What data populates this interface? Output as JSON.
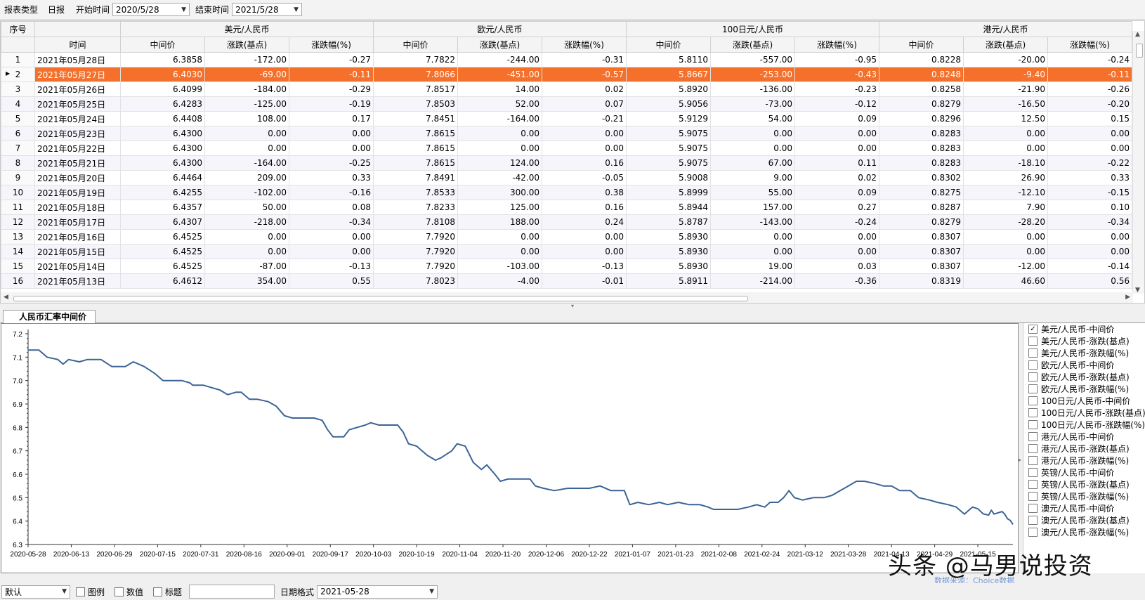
{
  "toolbar": {
    "report_type_label": "报表类型",
    "report_type_value": "日报",
    "start_label": "开始时间",
    "start_value": "2020/5/28",
    "end_label": "结束时间",
    "end_value": "2021/5/28"
  },
  "table": {
    "idx_header": "序号",
    "date_header": "时间",
    "groups": [
      "美元/人民币",
      "欧元/人民币",
      "100日元/人民币",
      "港元/人民币"
    ],
    "sub_headers": [
      "中间价",
      "涨跌(基点)",
      "涨跌幅(%)"
    ],
    "selected_row": 2,
    "rows": [
      [
        "1",
        "2021年05月28日",
        "6.3858",
        "-172.00",
        "-0.27",
        "7.7822",
        "-244.00",
        "-0.31",
        "5.8110",
        "-557.00",
        "-0.95",
        "0.8228",
        "-20.00",
        "-0.24"
      ],
      [
        "2",
        "2021年05月27日",
        "6.4030",
        "-69.00",
        "-0.11",
        "7.8066",
        "-451.00",
        "-0.57",
        "5.8667",
        "-253.00",
        "-0.43",
        "0.8248",
        "-9.40",
        "-0.11"
      ],
      [
        "3",
        "2021年05月26日",
        "6.4099",
        "-184.00",
        "-0.29",
        "7.8517",
        "14.00",
        "0.02",
        "5.8920",
        "-136.00",
        "-0.23",
        "0.8258",
        "-21.90",
        "-0.26"
      ],
      [
        "4",
        "2021年05月25日",
        "6.4283",
        "-125.00",
        "-0.19",
        "7.8503",
        "52.00",
        "0.07",
        "5.9056",
        "-73.00",
        "-0.12",
        "0.8279",
        "-16.50",
        "-0.20"
      ],
      [
        "5",
        "2021年05月24日",
        "6.4408",
        "108.00",
        "0.17",
        "7.8451",
        "-164.00",
        "-0.21",
        "5.9129",
        "54.00",
        "0.09",
        "0.8296",
        "12.50",
        "0.15"
      ],
      [
        "6",
        "2021年05月23日",
        "6.4300",
        "0.00",
        "0.00",
        "7.8615",
        "0.00",
        "0.00",
        "5.9075",
        "0.00",
        "0.00",
        "0.8283",
        "0.00",
        "0.00"
      ],
      [
        "7",
        "2021年05月22日",
        "6.4300",
        "0.00",
        "0.00",
        "7.8615",
        "0.00",
        "0.00",
        "5.9075",
        "0.00",
        "0.00",
        "0.8283",
        "0.00",
        "0.00"
      ],
      [
        "8",
        "2021年05月21日",
        "6.4300",
        "-164.00",
        "-0.25",
        "7.8615",
        "124.00",
        "0.16",
        "5.9075",
        "67.00",
        "0.11",
        "0.8283",
        "-18.10",
        "-0.22"
      ],
      [
        "9",
        "2021年05月20日",
        "6.4464",
        "209.00",
        "0.33",
        "7.8491",
        "-42.00",
        "-0.05",
        "5.9008",
        "9.00",
        "0.02",
        "0.8302",
        "26.90",
        "0.33"
      ],
      [
        "10",
        "2021年05月19日",
        "6.4255",
        "-102.00",
        "-0.16",
        "7.8533",
        "300.00",
        "0.38",
        "5.8999",
        "55.00",
        "0.09",
        "0.8275",
        "-12.10",
        "-0.15"
      ],
      [
        "11",
        "2021年05月18日",
        "6.4357",
        "50.00",
        "0.08",
        "7.8233",
        "125.00",
        "0.16",
        "5.8944",
        "157.00",
        "0.27",
        "0.8287",
        "7.90",
        "0.10"
      ],
      [
        "12",
        "2021年05月17日",
        "6.4307",
        "-218.00",
        "-0.34",
        "7.8108",
        "188.00",
        "0.24",
        "5.8787",
        "-143.00",
        "-0.24",
        "0.8279",
        "-28.20",
        "-0.34"
      ],
      [
        "13",
        "2021年05月16日",
        "6.4525",
        "0.00",
        "0.00",
        "7.7920",
        "0.00",
        "0.00",
        "5.8930",
        "0.00",
        "0.00",
        "0.8307",
        "0.00",
        "0.00"
      ],
      [
        "14",
        "2021年05月15日",
        "6.4525",
        "0.00",
        "0.00",
        "7.7920",
        "0.00",
        "0.00",
        "5.8930",
        "0.00",
        "0.00",
        "0.8307",
        "0.00",
        "0.00"
      ],
      [
        "15",
        "2021年05月14日",
        "6.4525",
        "-87.00",
        "-0.13",
        "7.7920",
        "-103.00",
        "-0.13",
        "5.8930",
        "19.00",
        "0.03",
        "0.8307",
        "-12.00",
        "-0.14"
      ],
      [
        "16",
        "2021年05月13日",
        "6.4612",
        "354.00",
        "0.55",
        "7.8023",
        "-4.00",
        "-0.01",
        "5.8911",
        "-214.00",
        "-0.36",
        "0.8319",
        "46.60",
        "0.56"
      ]
    ]
  },
  "chart_tab": "人民币汇率中间价",
  "legend": [
    {
      "label": "美元/人民币-中间价",
      "checked": true
    },
    {
      "label": "美元/人民币-涨跌(基点)",
      "checked": false
    },
    {
      "label": "美元/人民币-涨跌幅(%)",
      "checked": false
    },
    {
      "label": "欧元/人民币-中间价",
      "checked": false
    },
    {
      "label": "欧元/人民币-涨跌(基点)",
      "checked": false
    },
    {
      "label": "欧元/人民币-涨跌幅(%)",
      "checked": false
    },
    {
      "label": "100日元/人民币-中间价",
      "checked": false
    },
    {
      "label": "100日元/人民币-涨跌(基点)",
      "checked": false
    },
    {
      "label": "100日元/人民币-涨跌幅(%)",
      "checked": false
    },
    {
      "label": "港元/人民币-中间价",
      "checked": false
    },
    {
      "label": "港元/人民币-涨跌(基点)",
      "checked": false
    },
    {
      "label": "港元/人民币-涨跌幅(%)",
      "checked": false
    },
    {
      "label": "英镑/人民币-中间价",
      "checked": false
    },
    {
      "label": "英镑/人民币-涨跌(基点)",
      "checked": false
    },
    {
      "label": "英镑/人民币-涨跌幅(%)",
      "checked": false
    },
    {
      "label": "澳元/人民币-中间价",
      "checked": false
    },
    {
      "label": "澳元/人民币-涨跌(基点)",
      "checked": false
    },
    {
      "label": "澳元/人民币-涨跌幅(%)",
      "checked": false
    }
  ],
  "chart_data": {
    "type": "line",
    "title": "",
    "xlabel": "",
    "ylabel": "",
    "ylim": [
      6.3,
      7.2
    ],
    "yticks": [
      "7.2",
      "7.1",
      "7.0",
      "6.9",
      "6.8",
      "6.7",
      "6.6",
      "6.5",
      "6.4",
      "6.3"
    ],
    "xlim": [
      "2020-05-28",
      "2021-05-28"
    ],
    "xticks": [
      "2020-05-28",
      "2020-06-13",
      "2020-06-29",
      "2020-07-15",
      "2020-07-31",
      "2020-08-16",
      "2020-09-01",
      "2020-09-17",
      "2020-10-03",
      "2020-10-19",
      "2020-11-04",
      "2020-11-20",
      "2020-12-06",
      "2020-12-22",
      "2021-01-07",
      "2021-01-23",
      "2021-02-08",
      "2021-02-24",
      "2021-03-12",
      "2021-03-28",
      "2021-04-13",
      "2021-04-29",
      "2021-05-15"
    ],
    "grid": false,
    "series": [
      {
        "name": "",
        "color": "#3b6496",
        "points": [
          [
            "2020-05-28",
            7.13
          ],
          [
            "2020-06-01",
            7.13
          ],
          [
            "2020-06-04",
            7.1
          ],
          [
            "2020-06-08",
            7.09
          ],
          [
            "2020-06-10",
            7.07
          ],
          [
            "2020-06-12",
            7.09
          ],
          [
            "2020-06-16",
            7.08
          ],
          [
            "2020-06-19",
            7.09
          ],
          [
            "2020-06-24",
            7.09
          ],
          [
            "2020-06-28",
            7.06
          ],
          [
            "2020-07-03",
            7.06
          ],
          [
            "2020-07-06",
            7.08
          ],
          [
            "2020-07-08",
            7.07
          ],
          [
            "2020-07-10",
            7.06
          ],
          [
            "2020-07-14",
            7.03
          ],
          [
            "2020-07-17",
            7.0
          ],
          [
            "2020-07-21",
            7.0
          ],
          [
            "2020-07-24",
            7.0
          ],
          [
            "2020-07-27",
            6.99
          ],
          [
            "2020-07-28",
            6.98
          ],
          [
            "2020-08-01",
            6.98
          ],
          [
            "2020-08-04",
            6.97
          ],
          [
            "2020-08-07",
            6.96
          ],
          [
            "2020-08-10",
            6.94
          ],
          [
            "2020-08-13",
            6.95
          ],
          [
            "2020-08-15",
            6.95
          ],
          [
            "2020-08-18",
            6.92
          ],
          [
            "2020-08-21",
            6.92
          ],
          [
            "2020-08-25",
            6.91
          ],
          [
            "2020-08-28",
            6.89
          ],
          [
            "2020-08-31",
            6.85
          ],
          [
            "2020-09-03",
            6.84
          ],
          [
            "2020-09-08",
            6.84
          ],
          [
            "2020-09-11",
            6.84
          ],
          [
            "2020-09-14",
            6.83
          ],
          [
            "2020-09-16",
            6.79
          ],
          [
            "2020-09-18",
            6.76
          ],
          [
            "2020-09-22",
            6.76
          ],
          [
            "2020-09-24",
            6.79
          ],
          [
            "2020-09-27",
            6.8
          ],
          [
            "2020-09-30",
            6.81
          ],
          [
            "2020-10-02",
            6.82
          ],
          [
            "2020-10-05",
            6.81
          ],
          [
            "2020-10-09",
            6.81
          ],
          [
            "2020-10-12",
            6.81
          ],
          [
            "2020-10-14",
            6.78
          ],
          [
            "2020-10-16",
            6.73
          ],
          [
            "2020-10-19",
            6.72
          ],
          [
            "2020-10-21",
            6.7
          ],
          [
            "2020-10-23",
            6.68
          ],
          [
            "2020-10-26",
            6.66
          ],
          [
            "2020-10-28",
            6.67
          ],
          [
            "2020-11-01",
            6.7
          ],
          [
            "2020-11-03",
            6.73
          ],
          [
            "2020-11-06",
            6.72
          ],
          [
            "2020-11-09",
            6.65
          ],
          [
            "2020-11-12",
            6.62
          ],
          [
            "2020-11-14",
            6.64
          ],
          [
            "2020-11-17",
            6.6
          ],
          [
            "2020-11-19",
            6.57
          ],
          [
            "2020-11-22",
            6.58
          ],
          [
            "2020-11-26",
            6.58
          ],
          [
            "2020-11-30",
            6.58
          ],
          [
            "2020-12-02",
            6.55
          ],
          [
            "2020-12-05",
            6.54
          ],
          [
            "2020-12-09",
            6.53
          ],
          [
            "2020-12-14",
            6.54
          ],
          [
            "2020-12-18",
            6.54
          ],
          [
            "2020-12-22",
            6.54
          ],
          [
            "2020-12-26",
            6.55
          ],
          [
            "2020-12-30",
            6.53
          ],
          [
            "2021-01-04",
            6.53
          ],
          [
            "2021-01-06",
            6.47
          ],
          [
            "2021-01-09",
            6.48
          ],
          [
            "2021-01-13",
            6.47
          ],
          [
            "2021-01-17",
            6.48
          ],
          [
            "2021-01-20",
            6.47
          ],
          [
            "2021-01-24",
            6.48
          ],
          [
            "2021-01-28",
            6.47
          ],
          [
            "2021-02-01",
            6.47
          ],
          [
            "2021-02-04",
            6.46
          ],
          [
            "2021-02-06",
            6.45
          ],
          [
            "2021-02-10",
            6.45
          ],
          [
            "2021-02-15",
            6.45
          ],
          [
            "2021-02-19",
            6.46
          ],
          [
            "2021-02-22",
            6.47
          ],
          [
            "2021-02-25",
            6.46
          ],
          [
            "2021-02-27",
            6.48
          ],
          [
            "2021-03-02",
            6.48
          ],
          [
            "2021-03-04",
            6.5
          ],
          [
            "2021-03-06",
            6.53
          ],
          [
            "2021-03-08",
            6.5
          ],
          [
            "2021-03-11",
            6.49
          ],
          [
            "2021-03-15",
            6.5
          ],
          [
            "2021-03-19",
            6.5
          ],
          [
            "2021-03-22",
            6.51
          ],
          [
            "2021-03-25",
            6.53
          ],
          [
            "2021-03-28",
            6.55
          ],
          [
            "2021-03-31",
            6.57
          ],
          [
            "2021-04-03",
            6.57
          ],
          [
            "2021-04-07",
            6.56
          ],
          [
            "2021-04-10",
            6.55
          ],
          [
            "2021-04-13",
            6.55
          ],
          [
            "2021-04-16",
            6.53
          ],
          [
            "2021-04-20",
            6.53
          ],
          [
            "2021-04-23",
            6.5
          ],
          [
            "2021-04-27",
            6.49
          ],
          [
            "2021-04-30",
            6.48
          ],
          [
            "2021-05-04",
            6.47
          ],
          [
            "2021-05-07",
            6.46
          ],
          [
            "2021-05-10",
            6.43
          ],
          [
            "2021-05-13",
            6.46
          ],
          [
            "2021-05-15",
            6.4525
          ],
          [
            "2021-05-17",
            6.4307
          ],
          [
            "2021-05-19",
            6.4255
          ],
          [
            "2021-05-20",
            6.4464
          ],
          [
            "2021-05-21",
            6.43
          ],
          [
            "2021-05-24",
            6.4408
          ],
          [
            "2021-05-25",
            6.4283
          ],
          [
            "2021-05-26",
            6.4099
          ],
          [
            "2021-05-27",
            6.403
          ],
          [
            "2021-05-28",
            6.3858
          ]
        ]
      }
    ]
  },
  "watermark": "头条 @马男说投资",
  "watermark_sub": "数据来源：Choice数据",
  "bottom": {
    "template_value": "默认",
    "legend_label": "图例",
    "value_label": "数值",
    "title_label": "标题",
    "date_format_label": "日期格式",
    "date_format_value": "2021-05-28"
  }
}
